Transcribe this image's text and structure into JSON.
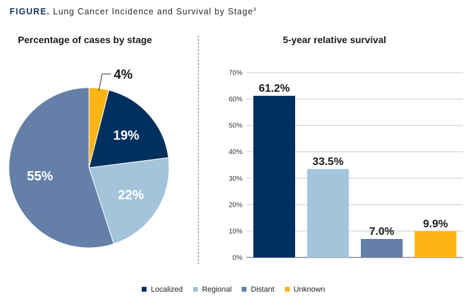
{
  "figure": {
    "prefix": "FIGURE.",
    "title": "Lung Cancer Incidence and Survival by Stage",
    "superscript": "3"
  },
  "colors": {
    "localized": "#00305e",
    "regional": "#a3c4da",
    "distant": "#6580a8",
    "unknown": "#fdb515"
  },
  "chart_data": [
    {
      "type": "pie",
      "title": "Percentage of cases by stage",
      "categories": [
        "Unknown",
        "Localized",
        "Regional",
        "Distant"
      ],
      "values": [
        4,
        19,
        22,
        55
      ],
      "labels": [
        "4%",
        "19%",
        "22%",
        "55%"
      ],
      "start_angle_deg": 0,
      "direction": "clockwise"
    },
    {
      "type": "bar",
      "title": "5-year relative survival",
      "categories": [
        "Localized",
        "Regional",
        "Distant",
        "Unknown"
      ],
      "values": [
        61.2,
        33.5,
        7.0,
        9.9
      ],
      "labels": [
        "61.2%",
        "33.5%",
        "7.0%",
        "9.9%"
      ],
      "ylim": [
        0,
        70
      ],
      "yticks": [
        "0%",
        "10%",
        "20%",
        "30%",
        "40%",
        "50%",
        "60%",
        "70%"
      ],
      "grid": true,
      "xlabel": "",
      "ylabel": ""
    }
  ],
  "legend": [
    {
      "label": "Localized",
      "color_key": "localized"
    },
    {
      "label": "Regional",
      "color_key": "regional"
    },
    {
      "label": "Distant",
      "color_key": "distant"
    },
    {
      "label": "Unknown",
      "color_key": "unknown"
    }
  ]
}
